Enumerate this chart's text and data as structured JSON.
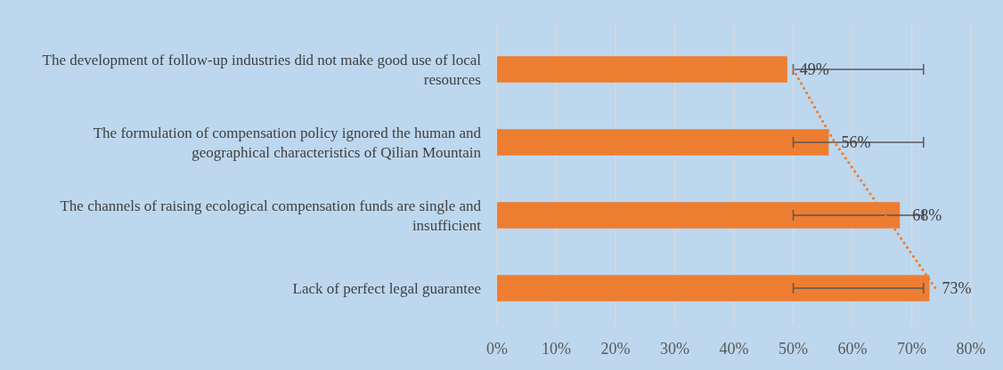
{
  "chart_data": {
    "type": "bar",
    "orientation": "horizontal",
    "categories": [
      "The development of follow-up industries did not make good use of local resources",
      "The formulation of compensation policy ignored the human and geographical characteristics of Qilian Mountain",
      "The channels of raising ecological compensation funds are single and insufficient",
      "Lack of perfect legal guarantee"
    ],
    "series": [
      {
        "color": "#ed7d31",
        "values": [
          49,
          56,
          68,
          73
        ],
        "value_labels": [
          "49%",
          "56%",
          "68%",
          "73%"
        ],
        "errors": [
          [
            50,
            72
          ],
          [
            50,
            72
          ],
          [
            50,
            72
          ],
          [
            50,
            72
          ]
        ]
      },
      {
        "type": "line",
        "color": "#ed7d31",
        "values": [
          50,
          57,
          65.5,
          74
        ],
        "line_style": "dotted",
        "marker": "none"
      }
    ],
    "xlim": [
      0,
      80
    ],
    "xticks": [
      {
        "value": 0,
        "label": "0%"
      },
      {
        "value": 10,
        "label": "10%"
      },
      {
        "value": 20,
        "label": "20%"
      },
      {
        "value": 30,
        "label": "30%"
      },
      {
        "value": 40,
        "label": "40%"
      },
      {
        "value": 50,
        "label": "50%"
      },
      {
        "value": 60,
        "label": "60%"
      },
      {
        "value": 70,
        "label": "70%"
      },
      {
        "value": 80,
        "label": "80%"
      }
    ],
    "grid": "x"
  }
}
